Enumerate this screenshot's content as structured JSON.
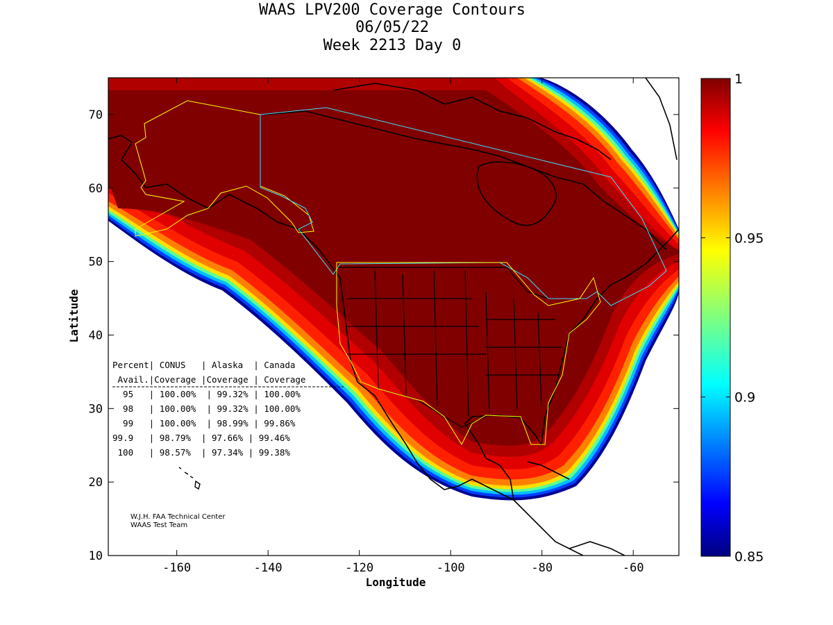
{
  "title_lines": [
    "WAAS LPV200 Coverage Contours",
    "06/05/22",
    "Week 2213 Day 0"
  ],
  "axes": {
    "xlabel": "Longitude",
    "ylabel": "Latitude",
    "xlim": [
      -175,
      -50
    ],
    "ylim": [
      10,
      75
    ],
    "xticks": [
      -160,
      -140,
      -120,
      -100,
      -80,
      -60
    ],
    "yticks": [
      10,
      20,
      30,
      40,
      50,
      60,
      70
    ],
    "xtick_labels": [
      "-160",
      "-140",
      "-120",
      "-100",
      "-80",
      "-60"
    ],
    "ytick_labels": [
      "10",
      "20",
      "30",
      "40",
      "50",
      "60",
      "70"
    ]
  },
  "colorbar": {
    "range": [
      0.85,
      1
    ],
    "ticks": [
      0.85,
      0.9,
      0.95,
      1
    ],
    "tick_labels": [
      "0.85",
      "0.9",
      "0.95",
      "1"
    ],
    "colormap": "jet"
  },
  "coverage_table": {
    "header1": "Percent| CONUS   | Alaska  | Canada",
    "header2": " Avail.|Coverage |Coverage | Coverage",
    "rows": [
      "  95   | 100.00%  | 99.32% | 100.00%",
      "  98   | 100.00%  | 99.32% | 100.00%",
      "  99   | 100.00%  | 98.99% | 99.86%",
      "99.9   | 98.79%  | 97.66% | 99.46%",
      " 100   | 98.57%  | 97.34% | 99.38%"
    ]
  },
  "credits": [
    "W.J.H. FAA Technical Center",
    "WAAS Test Team"
  ],
  "chart_data": {
    "type": "heatmap",
    "title": "WAAS LPV200 Coverage Contours",
    "subtitle": "06/05/22 Week 2213 Day 0",
    "xlabel": "Longitude",
    "ylabel": "Latitude",
    "xlim": [
      -175,
      -50
    ],
    "ylim": [
      10,
      75
    ],
    "colorbar_range": [
      0.85,
      1
    ],
    "legend": "right",
    "columns": [
      "Percent Avail.",
      "CONUS Coverage",
      "Alaska Coverage",
      "Canada Coverage"
    ],
    "rows": [
      [
        "95",
        "100.00%",
        "99.32%",
        "100.00%"
      ],
      [
        "98",
        "100.00%",
        "99.32%",
        "100.00%"
      ],
      [
        "99",
        "100.00%",
        "98.99%",
        "99.86%"
      ],
      [
        "99.9",
        "98.79%",
        "97.66%",
        "99.46%"
      ],
      [
        "100",
        "98.57%",
        "97.34%",
        "99.38%"
      ]
    ],
    "colors": {
      "core": "#800000",
      "edge_ramp": [
        "#b00000",
        "#e00000",
        "#ff2000",
        "#ff6000",
        "#ffa000",
        "#ffe000",
        "#c0ff40",
        "#40ffc0",
        "#00c0ff",
        "#0060ff",
        "#0000e0",
        "#000090"
      ]
    }
  }
}
